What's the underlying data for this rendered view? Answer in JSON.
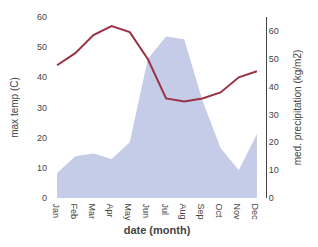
{
  "chart_data": {
    "type": "line",
    "xlabel": "date (month)",
    "ylabel": "max temp (C)",
    "y2label": "med. precipitation (kg/m2)",
    "categories": [
      "Jan",
      "Feb",
      "Mar",
      "Apr",
      "May",
      "Jun",
      "Jul",
      "Aug",
      "Sep",
      "Oct",
      "Nov",
      "Dec"
    ],
    "series": [
      {
        "type": "area",
        "axis": "y2",
        "color": "#c5cce8",
        "values": [
          9,
          15,
          16,
          14,
          20,
          50,
          58,
          57,
          35,
          18,
          10,
          23
        ]
      },
      {
        "type": "line",
        "color": "#993344",
        "values": [
          44,
          48,
          54,
          57,
          55,
          46,
          33,
          32,
          33,
          35,
          40,
          42
        ]
      }
    ],
    "ylim": [
      0,
      60
    ],
    "yticks": [
      0,
      10,
      20,
      30,
      40,
      50,
      60
    ],
    "y2lim": [
      0,
      65
    ],
    "y2ticks": [
      0,
      10,
      20,
      30,
      40,
      50,
      60
    ],
    "grid": false
  }
}
